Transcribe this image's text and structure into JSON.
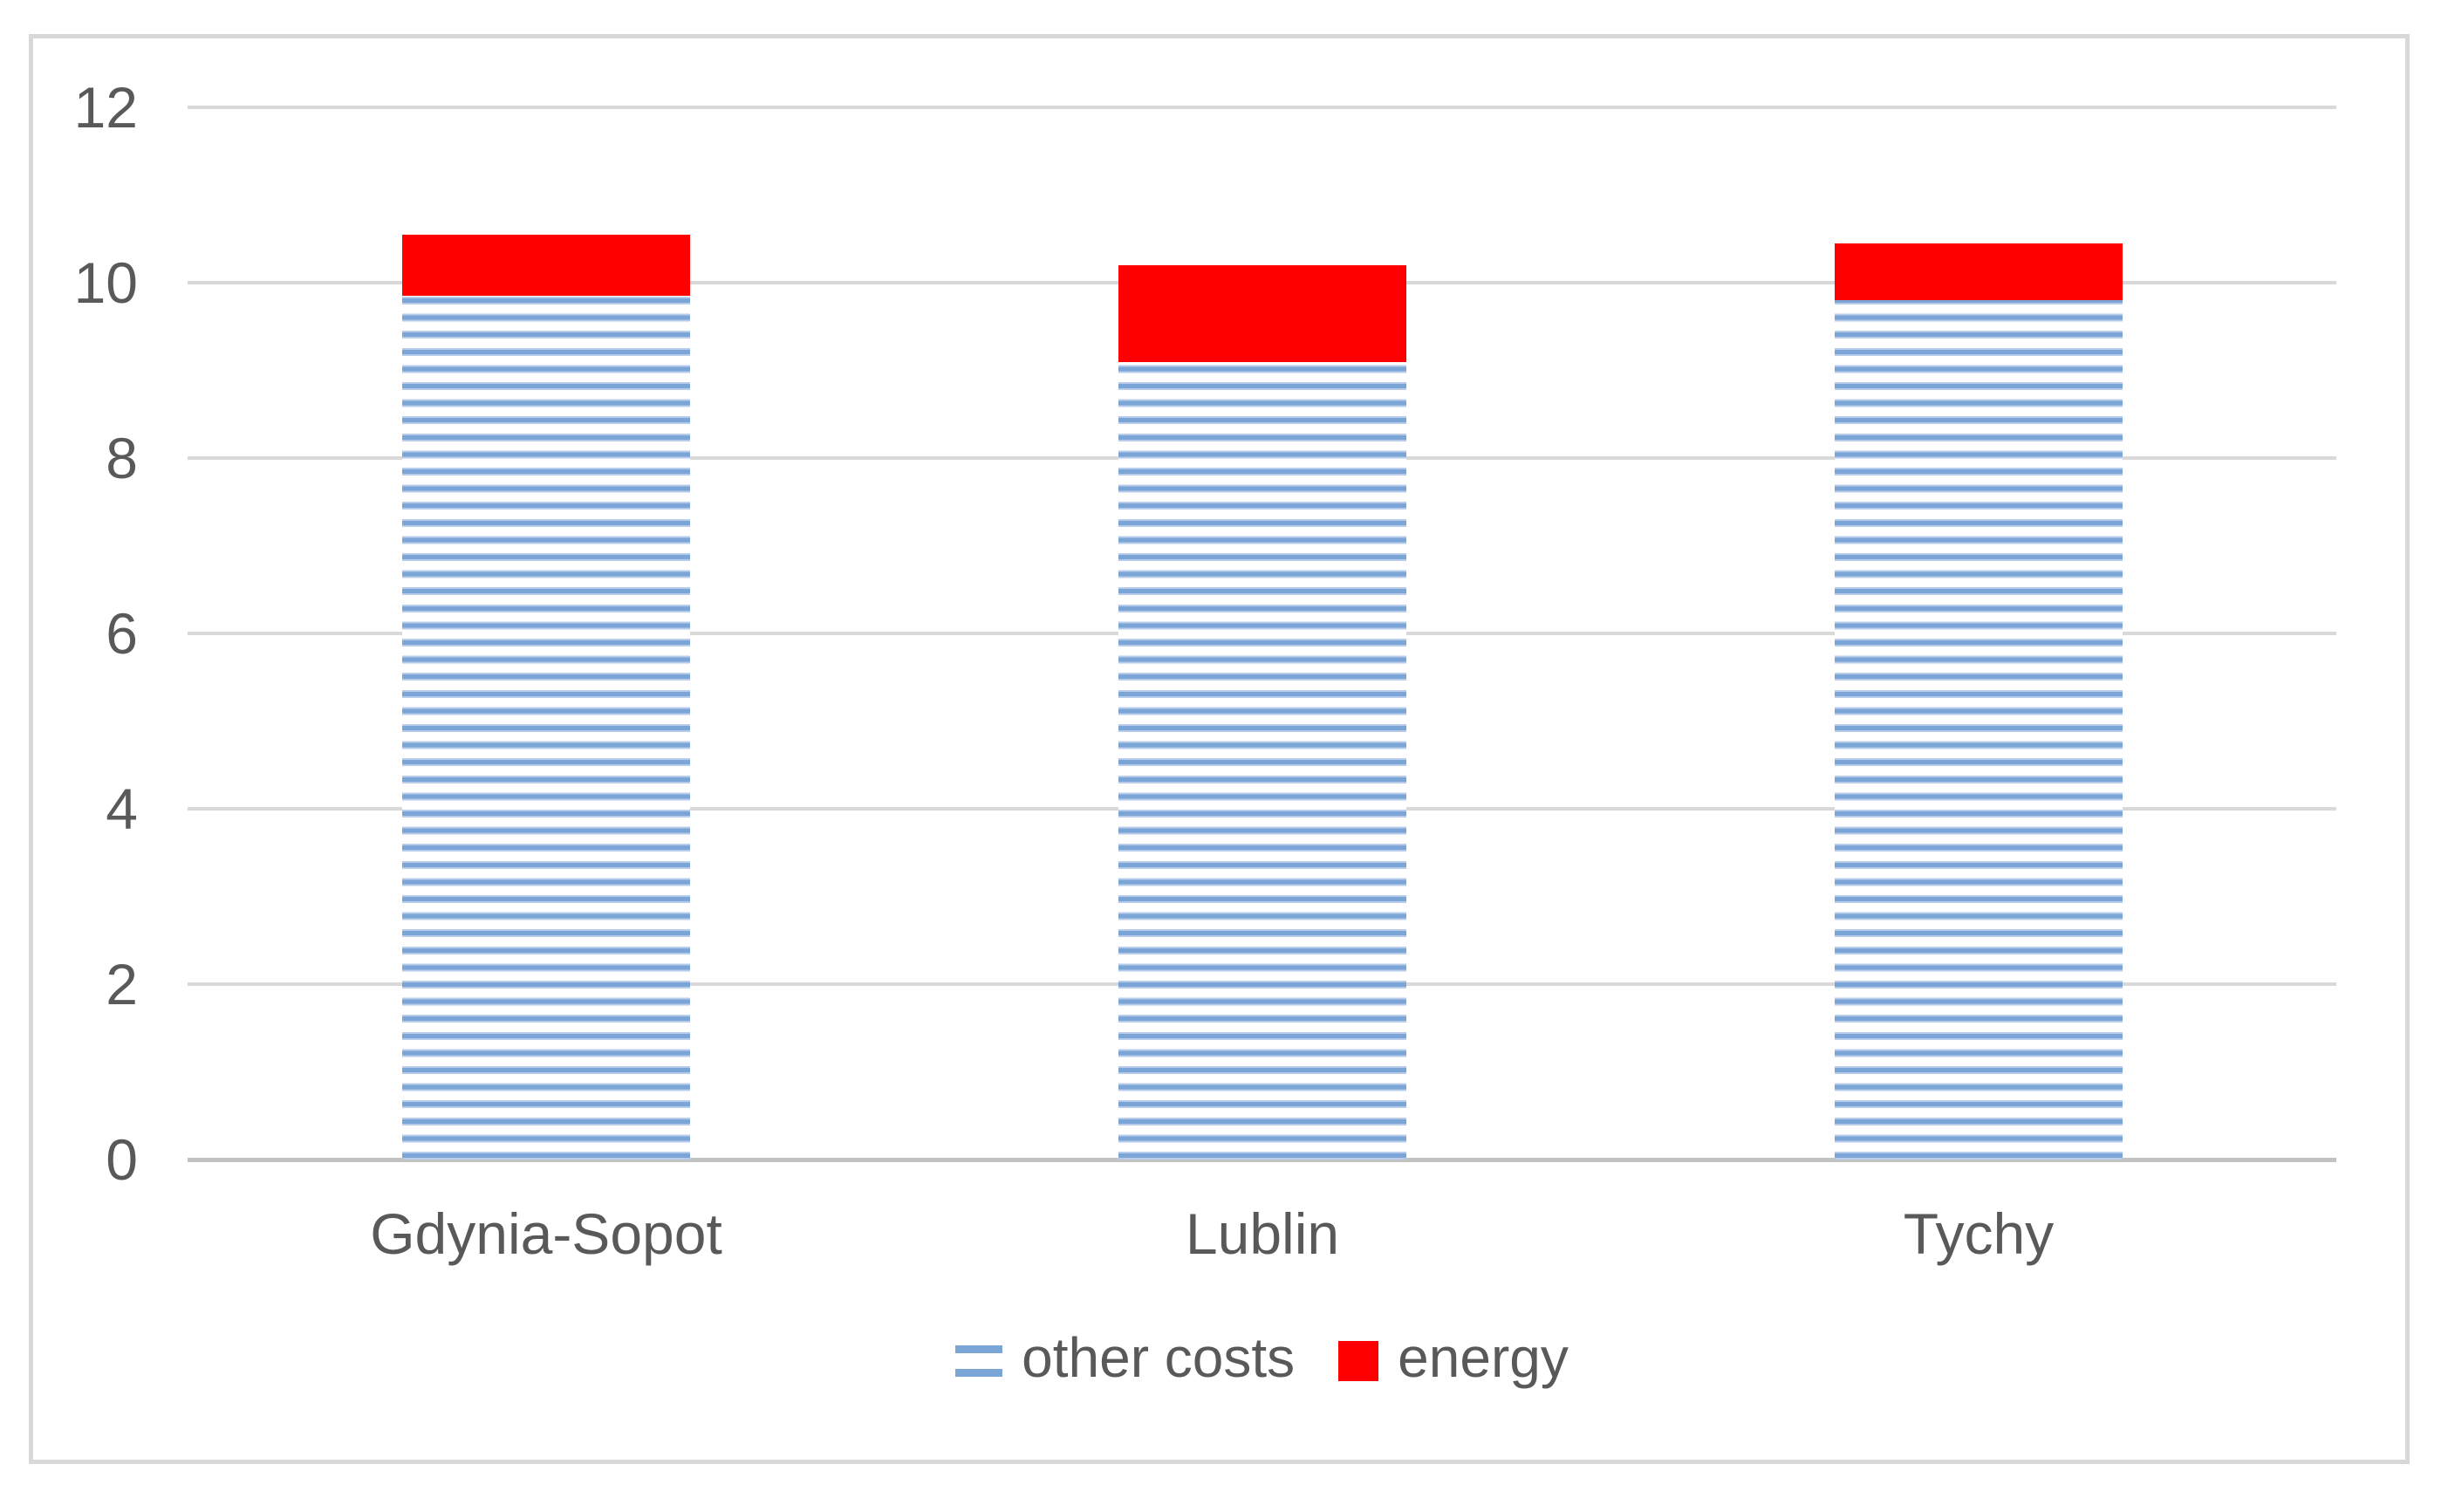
{
  "figure": {
    "background": "#FFFFFF",
    "frame_border_color": "#D8D8D8"
  },
  "axis": {
    "label_color": "#595959",
    "gridline_color": "#D9D9D9",
    "baseline_color": "#C2C2C2"
  },
  "chart_data": {
    "type": "bar",
    "stacked": true,
    "title": "",
    "xlabel": "",
    "ylabel": "",
    "categories": [
      "Gdynia-Sopot",
      "Lublin",
      "Tychy"
    ],
    "series": [
      {
        "name": "other costs",
        "values": [
          9.85,
          9.1,
          9.8
        ],
        "color": "#7BA4D7",
        "color_light": "#B7CCEA",
        "fill": "horizontal-stripe-pattern"
      },
      {
        "name": "energy",
        "values": [
          0.7,
          1.1,
          0.65
        ],
        "color": "#FF0000",
        "fill": "solid"
      }
    ],
    "totals": [
      10.55,
      10.2,
      10.45
    ],
    "ylim": [
      0,
      12
    ],
    "yticks": [
      0,
      2,
      4,
      6,
      8,
      10,
      12
    ],
    "grid": "horizontal-only",
    "legend_position": "bottom-center"
  }
}
